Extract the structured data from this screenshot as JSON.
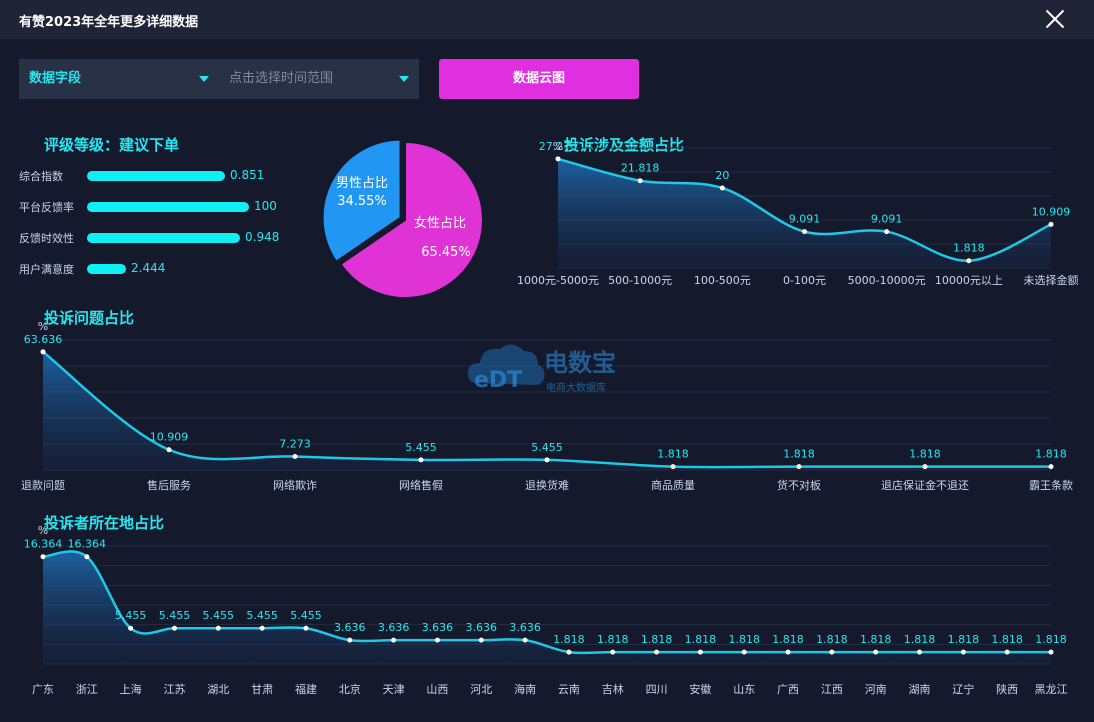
{
  "window": {
    "title": "有赞2023年全年更多详细数据",
    "close_icon": "close-icon"
  },
  "filters": {
    "field_select": "数据字段",
    "time_placeholder": "点击选择时间范围",
    "cloud_button": "数据云图"
  },
  "rating": {
    "title": "评级等级：建议下单",
    "items": [
      {
        "label": "综合指数",
        "value": "0.851",
        "fraction": 0.81
      },
      {
        "label": "平台反馈率",
        "value": "100",
        "fraction": 0.95
      },
      {
        "label": "反馈时效性",
        "value": "0.948",
        "fraction": 0.9
      },
      {
        "label": "用户满意度",
        "value": "2.444",
        "fraction": 0.23
      }
    ]
  },
  "watermark": {
    "brand": "电数宝",
    "sub": "电商大数据库",
    "logo": "eDT"
  },
  "gender_pie": {
    "type": "pie",
    "slices": [
      {
        "name": "男性占比",
        "label": "34.55%",
        "value": 34.55,
        "color": "#2196f3"
      },
      {
        "name": "女性占比",
        "label": "65.45%",
        "value": 65.45,
        "color": "#e033d6"
      }
    ]
  },
  "chart_data": [
    {
      "id": "amount",
      "type": "area",
      "title": "投诉涉及金额占比",
      "unit": "%",
      "categories": [
        "1000元-5000元",
        "500-1000元",
        "100-500元",
        "0-100元",
        "5000-10000元",
        "10000元以上",
        "未选择金额"
      ],
      "values": [
        27.273,
        21.818,
        20,
        9.091,
        9.091,
        1.818,
        10.909
      ],
      "labels": [
        "27.273",
        "21.818",
        "20",
        "9.091",
        "9.091",
        "1.818",
        "10.909"
      ],
      "ylim": [
        0,
        30
      ]
    },
    {
      "id": "issue",
      "type": "area",
      "title": "投诉问题占比",
      "unit": "%",
      "categories": [
        "退款问题",
        "售后服务",
        "网络欺诈",
        "网络售假",
        "退换货难",
        "商品质量",
        "货不对板",
        "退店保证金不退还",
        "霸王条款"
      ],
      "values": [
        63.636,
        10.909,
        7.273,
        5.455,
        5.455,
        1.818,
        1.818,
        1.818,
        1.818
      ],
      "labels": [
        "63.636",
        "10.909",
        "7.273",
        "5.455",
        "5.455",
        "1.818",
        "1.818",
        "1.818",
        "1.818"
      ],
      "ylim": [
        0,
        70
      ]
    },
    {
      "id": "region",
      "type": "area",
      "title": "投诉者所在地占比",
      "unit": "%",
      "categories": [
        "广东",
        "浙江",
        "上海",
        "江苏",
        "湖北",
        "甘肃",
        "福建",
        "北京",
        "天津",
        "山西",
        "河北",
        "海南",
        "云南",
        "吉林",
        "四川",
        "安徽",
        "山东",
        "广西",
        "江西",
        "河南",
        "湖南",
        "辽宁",
        "陕西",
        "黑龙江"
      ],
      "values": [
        16.364,
        16.364,
        5.455,
        5.455,
        5.455,
        5.455,
        5.455,
        3.636,
        3.636,
        3.636,
        3.636,
        3.636,
        1.818,
        1.818,
        1.818,
        1.818,
        1.818,
        1.818,
        1.818,
        1.818,
        1.818,
        1.818,
        1.818,
        1.818
      ],
      "labels": [
        "16.364",
        "16.364",
        "5.455",
        "5.455",
        "5.455",
        "5.455",
        "5.455",
        "3.636",
        "3.636",
        "3.636",
        "3.636",
        "3.636",
        "1.818",
        "1.818",
        "1.818",
        "1.818",
        "1.818",
        "1.818",
        "1.818",
        "1.818",
        "1.818",
        "1.818",
        "1.818",
        "1.818"
      ],
      "ylim": [
        0,
        18
      ]
    }
  ],
  "colors": {
    "accent": "#25e7f0",
    "button": "#df2fe0",
    "line": "#1fc8e6",
    "bg": "#141a2c"
  }
}
